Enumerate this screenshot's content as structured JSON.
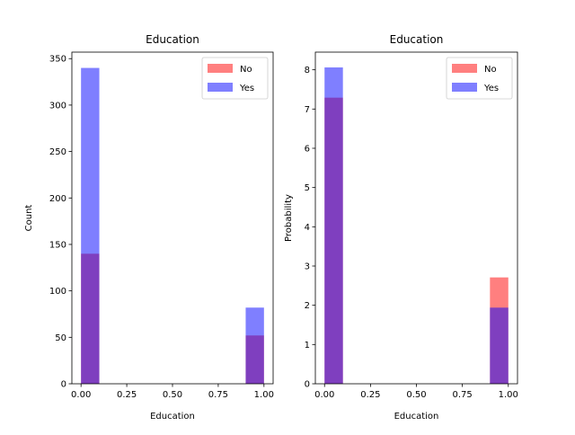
{
  "colors": {
    "no": "#ff0000",
    "yes": "#0000ff",
    "bar_opacity": 0.5
  },
  "chart_data": [
    {
      "type": "bar",
      "title": "Education",
      "xlabel": "Education",
      "ylabel": "Count",
      "xlim": [
        -0.05,
        1.05
      ],
      "ylim": [
        0,
        357
      ],
      "xticks": [
        0.0,
        0.25,
        0.5,
        0.75,
        1.0
      ],
      "xtick_labels": [
        "0.00",
        "0.25",
        "0.50",
        "0.75",
        "1.00"
      ],
      "yticks": [
        0,
        50,
        100,
        150,
        200,
        250,
        300,
        350
      ],
      "ytick_labels": [
        "0",
        "50",
        "100",
        "150",
        "200",
        "250",
        "300",
        "350"
      ],
      "bins": [
        [
          0.0,
          0.1
        ],
        [
          0.9,
          1.0
        ]
      ],
      "series": [
        {
          "name": "No",
          "color_key": "no",
          "values": [
            140,
            52
          ]
        },
        {
          "name": "Yes",
          "color_key": "yes",
          "values": [
            340,
            82
          ]
        }
      ],
      "legend": "top-right"
    },
    {
      "type": "bar",
      "title": "Education",
      "xlabel": "Education",
      "ylabel": "Probability",
      "xlim": [
        -0.05,
        1.05
      ],
      "ylim": [
        0,
        8.45
      ],
      "xticks": [
        0.0,
        0.25,
        0.5,
        0.75,
        1.0
      ],
      "xtick_labels": [
        "0.00",
        "0.25",
        "0.50",
        "0.75",
        "1.00"
      ],
      "yticks": [
        0,
        1,
        2,
        3,
        4,
        5,
        6,
        7,
        8
      ],
      "ytick_labels": [
        "0",
        "1",
        "2",
        "3",
        "4",
        "5",
        "6",
        "7",
        "8"
      ],
      "bins": [
        [
          0.0,
          0.1
        ],
        [
          0.9,
          1.0
        ]
      ],
      "series": [
        {
          "name": "No",
          "color_key": "no",
          "values": [
            7.29,
            2.71
          ]
        },
        {
          "name": "Yes",
          "color_key": "yes",
          "values": [
            8.06,
            1.94
          ]
        }
      ],
      "legend": "top-right"
    }
  ]
}
